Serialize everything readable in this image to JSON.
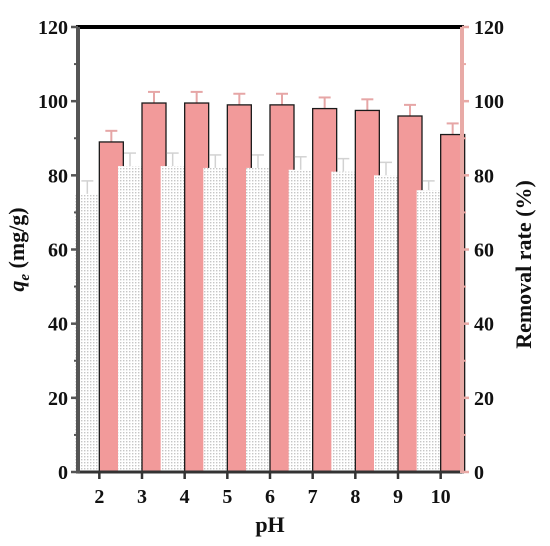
{
  "chart_data": {
    "type": "bar",
    "title": "",
    "xlabel": "pH",
    "ylabel_left_italic": "q",
    "ylabel_left_sub": "e",
    "ylabel_left_unit": " (mg/g)",
    "ylabel_right": "Removal rate (%)",
    "categories": [
      "2",
      "3",
      "4",
      "5",
      "6",
      "7",
      "8",
      "9",
      "10"
    ],
    "ylim": [
      0,
      120
    ],
    "yticks": [
      "0",
      "20",
      "40",
      "60",
      "80",
      "100",
      "120"
    ],
    "series": [
      {
        "name": "",
        "axis": "left",
        "style": "dotted",
        "color": "#cfcfcf",
        "values": [
          75,
          82.5,
          82.5,
          82,
          82,
          81.5,
          81,
          80,
          76
        ],
        "errors": [
          3.5,
          3.5,
          3.5,
          3.5,
          3.5,
          3.5,
          3.5,
          3.5,
          2.5
        ]
      },
      {
        "name": "",
        "axis": "right",
        "style": "solid",
        "color": "#f29a9a",
        "values": [
          89,
          99.5,
          99.5,
          99,
          99,
          98,
          97.5,
          96,
          91
        ],
        "errors": [
          3,
          3,
          3,
          3,
          3,
          3,
          3,
          3,
          3
        ]
      }
    ],
    "left_axis_color": "#555555",
    "right_axis_color": "#e8aaa6",
    "top_border_color": "#000000",
    "grid": false
  }
}
